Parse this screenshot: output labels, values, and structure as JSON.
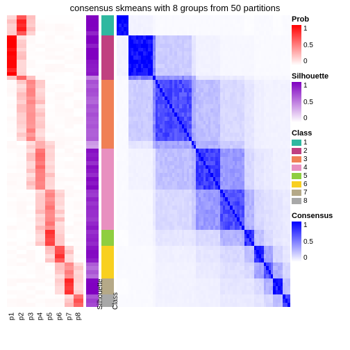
{
  "title": "consensus skmeans with 8 groups from 50 partitions",
  "anno_labels": [
    "p1",
    "p2",
    "p3",
    "p4",
    "p5",
    "p6",
    "p7",
    "p8"
  ],
  "sil_label": "Silhouette",
  "class_label": "Class",
  "colors": {
    "prob_low": "#ffffff",
    "prob_high": "#ff0000",
    "sil_low": "#ffffff",
    "sil_high": "#8000c0",
    "cons_low": "#ffffff",
    "cons_high": "#0000ff",
    "bg": "#ffffff"
  },
  "class_palette": {
    "1": "#2fb8a0",
    "2": "#c04080",
    "3": "#f08055",
    "4": "#e890c0",
    "5": "#8fce40",
    "6": "#f8d020",
    "7": "#b5a988",
    "8": "#a8a8a8"
  },
  "legends": {
    "prob": {
      "title": "Prob",
      "ticks": [
        "1",
        "0.5",
        "0"
      ]
    },
    "sil": {
      "title": "Silhouette",
      "ticks": [
        "1",
        "0.5",
        "0"
      ]
    },
    "cls": {
      "title": "Class",
      "items": [
        "1",
        "2",
        "3",
        "4",
        "5",
        "6",
        "7",
        "8"
      ]
    },
    "cons": {
      "title": "Consensus",
      "ticks": [
        "1",
        "0.5",
        "0"
      ]
    }
  },
  "group_sizes": [
    5,
    10,
    1,
    15,
    2,
    10,
    10,
    4,
    4,
    4,
    4,
    3
  ],
  "group_class": [
    1,
    2,
    2,
    3,
    3,
    4,
    4,
    5,
    6,
    6,
    7,
    8
  ],
  "group_anno_col": [
    2,
    1,
    2,
    3,
    4,
    4,
    5,
    5,
    6,
    7,
    7,
    8
  ],
  "group_sil": [
    0.95,
    0.98,
    0.5,
    0.65,
    0.4,
    0.9,
    0.85,
    0.9,
    0.9,
    0.6,
    1.0,
    0.7
  ],
  "group_prob": [
    0.78,
    0.95,
    0.55,
    0.45,
    0.35,
    0.55,
    0.48,
    0.75,
    0.75,
    0.45,
    0.75,
    0.6
  ],
  "cons_blocks": [
    [
      1.0,
      0.05,
      0.03,
      0.02,
      0.02,
      0.02,
      0.02,
      0.01,
      0.02,
      0.02,
      0.01,
      0.02
    ],
    [
      0.05,
      0.99,
      0.5,
      0.2,
      0.1,
      0.05,
      0.03,
      0.03,
      0.02,
      0.02,
      0.02,
      0.02
    ],
    [
      0.03,
      0.5,
      0.85,
      0.45,
      0.3,
      0.1,
      0.08,
      0.05,
      0.03,
      0.03,
      0.03,
      0.03
    ],
    [
      0.02,
      0.2,
      0.45,
      0.7,
      0.35,
      0.25,
      0.15,
      0.1,
      0.06,
      0.05,
      0.05,
      0.05
    ],
    [
      0.02,
      0.1,
      0.3,
      0.35,
      0.6,
      0.3,
      0.2,
      0.1,
      0.06,
      0.05,
      0.05,
      0.05
    ],
    [
      0.02,
      0.05,
      0.1,
      0.25,
      0.3,
      0.75,
      0.4,
      0.15,
      0.1,
      0.08,
      0.06,
      0.06
    ],
    [
      0.02,
      0.03,
      0.08,
      0.15,
      0.2,
      0.4,
      0.7,
      0.3,
      0.15,
      0.12,
      0.1,
      0.08
    ],
    [
      0.01,
      0.03,
      0.05,
      0.1,
      0.1,
      0.15,
      0.3,
      0.8,
      0.25,
      0.15,
      0.1,
      0.08
    ],
    [
      0.02,
      0.02,
      0.03,
      0.06,
      0.06,
      0.1,
      0.15,
      0.25,
      0.8,
      0.35,
      0.15,
      0.1
    ],
    [
      0.02,
      0.02,
      0.03,
      0.05,
      0.05,
      0.08,
      0.12,
      0.15,
      0.35,
      0.65,
      0.3,
      0.15
    ],
    [
      0.01,
      0.02,
      0.03,
      0.05,
      0.05,
      0.06,
      0.1,
      0.1,
      0.15,
      0.3,
      0.9,
      0.25
    ],
    [
      0.02,
      0.02,
      0.03,
      0.05,
      0.05,
      0.06,
      0.08,
      0.08,
      0.1,
      0.15,
      0.25,
      0.75
    ]
  ],
  "fonts": {
    "title_pt": 13,
    "label_pt": 10,
    "legend_title_pt": 11
  }
}
